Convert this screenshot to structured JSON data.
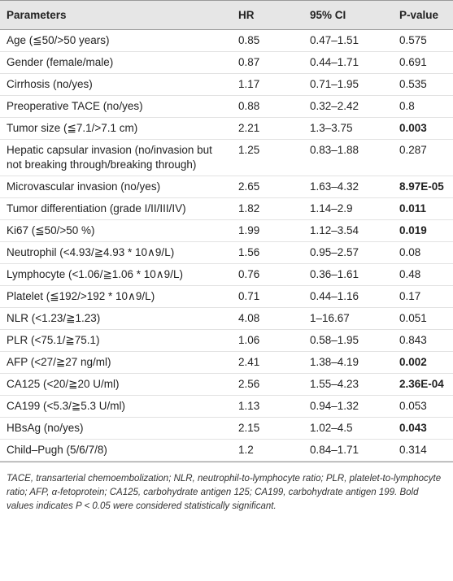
{
  "table": {
    "header": [
      "Parameters",
      "HR",
      "95% CI",
      "P-value"
    ],
    "rows": [
      {
        "cells": [
          "Age (≦50/>50 years)",
          "0.85",
          "0.47–1.51",
          "0.575"
        ],
        "p_bold": false
      },
      {
        "cells": [
          "Gender (female/male)",
          "0.87",
          "0.44–1.71",
          "0.691"
        ],
        "p_bold": false
      },
      {
        "cells": [
          "Cirrhosis (no/yes)",
          "1.17",
          "0.71–1.95",
          "0.535"
        ],
        "p_bold": false
      },
      {
        "cells": [
          "Preoperative TACE (no/yes)",
          "0.88",
          "0.32–2.42",
          "0.8"
        ],
        "p_bold": false
      },
      {
        "cells": [
          "Tumor size (≦7.1/>7.1 cm)",
          "2.21",
          "1.3–3.75",
          "0.003"
        ],
        "p_bold": true
      },
      {
        "cells": [
          "Hepatic capsular invasion (no/invasion but not breaking through/breaking through)",
          "1.25",
          "0.83–1.88",
          "0.287"
        ],
        "p_bold": false
      },
      {
        "cells": [
          "Microvascular invasion (no/yes)",
          "2.65",
          "1.63–4.32",
          "8.97E-05"
        ],
        "p_bold": true
      },
      {
        "cells": [
          "Tumor differentiation (grade I/II/III/IV)",
          "1.82",
          "1.14–2.9",
          "0.011"
        ],
        "p_bold": true
      },
      {
        "cells": [
          "Ki67 (≦50/>50 %)",
          "1.99",
          "1.12–3.54",
          "0.019"
        ],
        "p_bold": true
      },
      {
        "cells": [
          "Neutrophil (<4.93/≧4.93 * 10∧9/L)",
          "1.56",
          "0.95–2.57",
          "0.08"
        ],
        "p_bold": false
      },
      {
        "cells": [
          "Lymphocyte (<1.06/≧1.06 * 10∧9/L)",
          "0.76",
          "0.36–1.61",
          "0.48"
        ],
        "p_bold": false
      },
      {
        "cells": [
          "Platelet (≦192/>192 * 10∧9/L)",
          "0.71",
          "0.44–1.16",
          "0.17"
        ],
        "p_bold": false
      },
      {
        "cells": [
          "NLR (<1.23/≧1.23)",
          "4.08",
          "1–16.67",
          "0.051"
        ],
        "p_bold": false
      },
      {
        "cells": [
          "PLR (<75.1/≧75.1)",
          "1.06",
          "0.58–1.95",
          "0.843"
        ],
        "p_bold": false
      },
      {
        "cells": [
          "AFP (<27/≧27 ng/ml)",
          "2.41",
          "1.38–4.19",
          "0.002"
        ],
        "p_bold": true
      },
      {
        "cells": [
          "CA125 (<20/≧20 U/ml)",
          "2.56",
          "1.55–4.23",
          "2.36E-04"
        ],
        "p_bold": true
      },
      {
        "cells": [
          "CA199 (<5.3/≧5.3 U/ml)",
          "1.13",
          "0.94–1.32",
          "0.053"
        ],
        "p_bold": false
      },
      {
        "cells": [
          "HBsAg (no/yes)",
          "2.15",
          "1.02–4.5",
          "0.043"
        ],
        "p_bold": true
      },
      {
        "cells": [
          "Child–Pugh (5/6/7/8)",
          "1.2",
          "0.84–1.71",
          "0.314"
        ],
        "p_bold": false
      }
    ],
    "footnote": "TACE, transarterial chemoembolization; NLR, neutrophil-to-lymphocyte ratio; PLR, platelet-to-lymphocyte ratio; AFP, α-fetoprotein; CA125, carbohydrate antigen 125; CA199, carbohydrate antigen 199. Bold values indicates P < 0.05 were considered statistically significant."
  }
}
